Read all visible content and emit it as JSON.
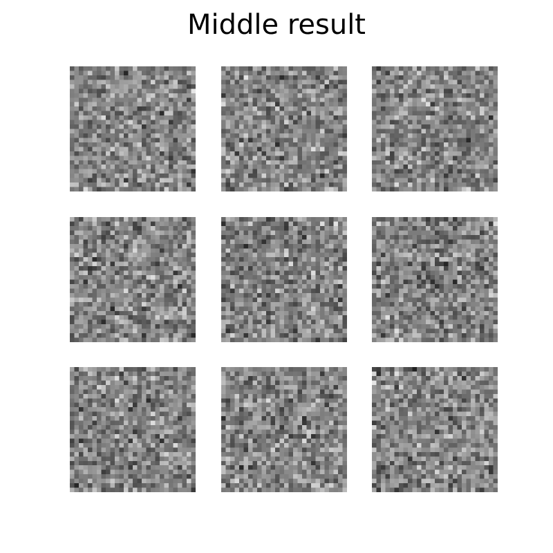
{
  "figure": {
    "title": "Middle result"
  },
  "panels": {
    "rows": 3,
    "columns": 3,
    "pixel_grid": 28,
    "colormap": "gray",
    "gray_range": [
      30,
      235
    ],
    "seeds": [
      11,
      23,
      37,
      41,
      59,
      67,
      73,
      89,
      97
    ]
  }
}
